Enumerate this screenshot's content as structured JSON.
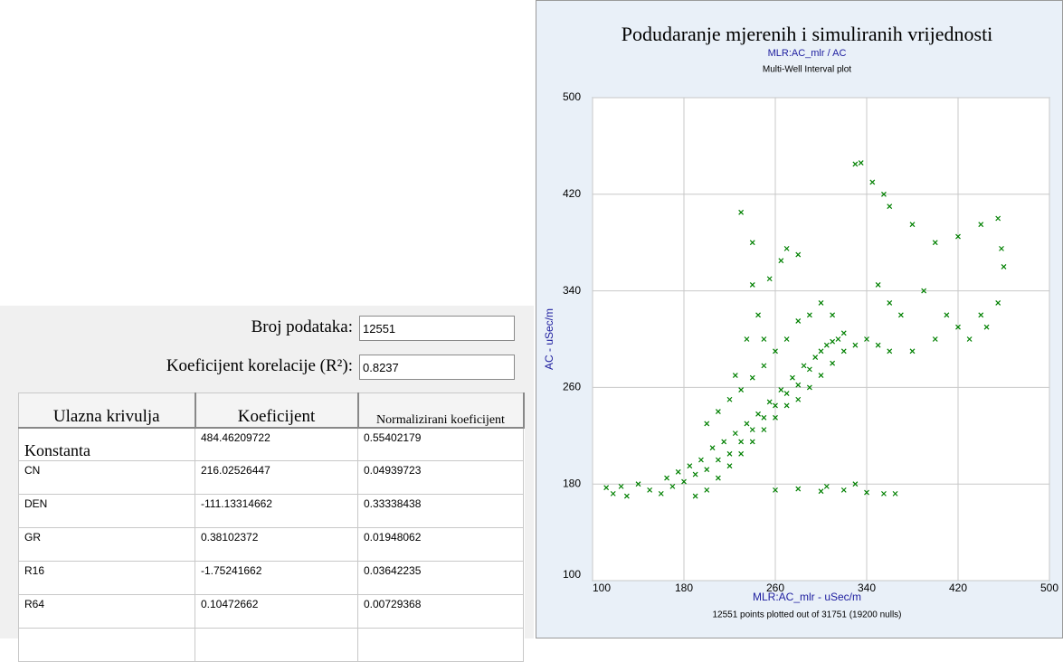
{
  "form": {
    "count_label": "Broj podataka:",
    "count_value": "12551",
    "r2_label": "Koeficijent korelacije (R²):",
    "r2_value": "0.8237"
  },
  "table": {
    "headers": [
      "Ulazna krivulja",
      "Koeficijent",
      "Normalizirani koeficijent"
    ],
    "rows": [
      [
        "Konstanta",
        "484.46209722",
        "0.55402179"
      ],
      [
        "CN",
        "216.02526447",
        "0.04939723"
      ],
      [
        "DEN",
        "-111.13314662",
        "0.33338438"
      ],
      [
        "GR",
        "0.38102372",
        "0.01948062"
      ],
      [
        "R16",
        "-1.75241662",
        "0.03642235"
      ],
      [
        "R64",
        "0.10472662",
        "0.00729368"
      ]
    ]
  },
  "chart_data": {
    "type": "scatter",
    "title": "Podudaranje mjerenih i simuliranih vrijednosti",
    "subtitle": "MLR:AC_mlr / AC",
    "plot_name": "Multi-Well Interval plot",
    "xlabel": "MLR:AC_mlr - uSec/m",
    "ylabel": "AC - uSec/m",
    "note": "12551 points plotted out of 31751 (19200 nulls)",
    "xlim": [
      100,
      500
    ],
    "ylim": [
      100,
      500
    ],
    "xticks": [
      100,
      180,
      260,
      340,
      420,
      500
    ],
    "yticks": [
      100,
      180,
      260,
      340,
      420,
      500
    ],
    "grid": true,
    "color": "#008000",
    "x": [
      112,
      118,
      125,
      130,
      140,
      150,
      160,
      165,
      170,
      175,
      180,
      185,
      190,
      195,
      200,
      205,
      210,
      215,
      220,
      225,
      230,
      235,
      240,
      245,
      250,
      255,
      260,
      265,
      270,
      275,
      280,
      285,
      290,
      295,
      300,
      305,
      310,
      315,
      320,
      200,
      190,
      210,
      220,
      230,
      240,
      250,
      260,
      270,
      280,
      290,
      300,
      310,
      320,
      330,
      340,
      350,
      360,
      200,
      210,
      220,
      230,
      240,
      250,
      260,
      270,
      280,
      290,
      300,
      310,
      250,
      245,
      240,
      255,
      265,
      270,
      280,
      235,
      225,
      260,
      280,
      300,
      320,
      340,
      355,
      365,
      330,
      305,
      230,
      240,
      330,
      335,
      345,
      355,
      360,
      380,
      400,
      420,
      440,
      455,
      458,
      460,
      455,
      440,
      420,
      400,
      380,
      360,
      350,
      370,
      390,
      410,
      430,
      445
    ],
    "y": [
      177,
      172,
      178,
      170,
      180,
      175,
      172,
      185,
      178,
      190,
      182,
      195,
      188,
      200,
      192,
      210,
      200,
      215,
      205,
      222,
      215,
      230,
      225,
      238,
      235,
      248,
      245,
      258,
      255,
      268,
      262,
      278,
      275,
      285,
      290,
      295,
      298,
      300,
      305,
      175,
      170,
      185,
      195,
      205,
      215,
      225,
      235,
      245,
      250,
      260,
      270,
      280,
      290,
      295,
      300,
      295,
      290,
      230,
      240,
      250,
      258,
      268,
      278,
      290,
      300,
      315,
      320,
      330,
      320,
      300,
      320,
      345,
      350,
      365,
      375,
      370,
      300,
      270,
      175,
      176,
      174,
      175,
      173,
      172,
      172,
      180,
      178,
      405,
      380,
      445,
      446,
      430,
      420,
      410,
      395,
      380,
      385,
      395,
      400,
      375,
      360,
      330,
      320,
      310,
      300,
      290,
      330,
      345,
      320,
      340,
      320,
      300,
      310
    ]
  }
}
